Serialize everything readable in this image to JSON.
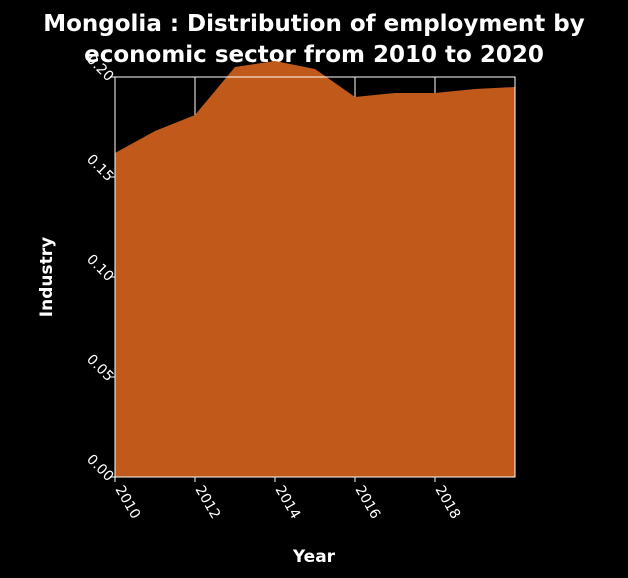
{
  "chart_data": {
    "type": "area",
    "title": "Mongolia : Distribution of employment by economic sector from 2010 to 2020",
    "title_lines": [
      "Mongolia : Distribution of employment by",
      "economic sector from 2010 to 2020"
    ],
    "xlabel": "Year",
    "ylabel": "Industry",
    "x": [
      2010,
      2011,
      2012,
      2013,
      2014,
      2015,
      2016,
      2017,
      2018,
      2019,
      2020
    ],
    "series": [
      {
        "values": [
          0.162,
          0.173,
          0.181,
          0.205,
          0.208,
          0.204,
          0.19,
          0.192,
          0.192,
          0.194,
          0.195
        ]
      }
    ],
    "xlim": [
      2010,
      2020
    ],
    "ylim": [
      0,
      0.2
    ],
    "xticks": [
      "2010",
      "2012",
      "2014",
      "2016",
      "2018"
    ],
    "yticks": [
      "0.00",
      "0.05",
      "0.10",
      "0.15",
      "0.20"
    ],
    "grid": true,
    "colors": {
      "background": "#000000",
      "fill": "#c0591a",
      "grid": "#ffffff",
      "text": "#ffffff"
    }
  }
}
